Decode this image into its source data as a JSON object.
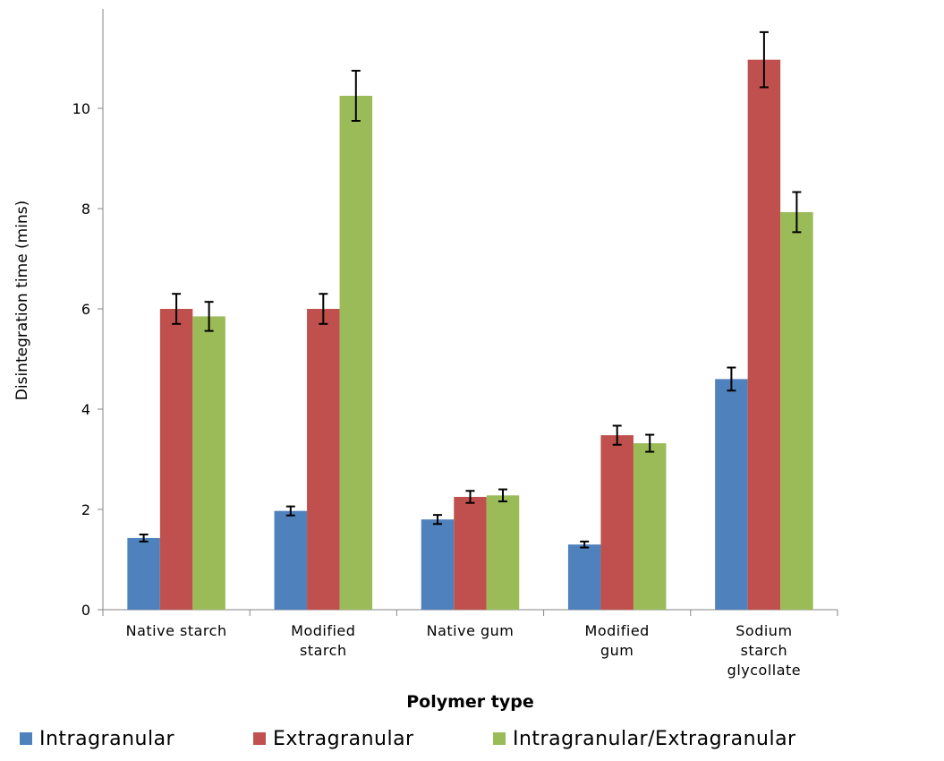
{
  "chart_data": {
    "type": "bar",
    "title": "",
    "xlabel": "Polymer type",
    "ylabel": "Disintegration time (mins)",
    "ylim": [
      0,
      12
    ],
    "yticks": [
      0,
      2,
      4,
      6,
      8,
      10
    ],
    "grid": false,
    "legend_position": "bottom",
    "categories": [
      [
        "Native starch"
      ],
      [
        "Modified",
        "starch"
      ],
      [
        "Native gum"
      ],
      [
        "Modified",
        "gum"
      ],
      [
        "Sodium",
        "starch",
        "glycollate"
      ]
    ],
    "series": [
      {
        "name": "Intragranular",
        "color": "#4F81BD",
        "values": [
          1.43,
          1.97,
          1.8,
          1.3,
          4.6
        ],
        "errors": [
          0.07,
          0.09,
          0.09,
          0.06,
          0.23
        ]
      },
      {
        "name": "Extragranular",
        "color": "#C0504D",
        "values": [
          6.0,
          6.0,
          2.25,
          3.48,
          10.97
        ],
        "errors": [
          0.3,
          0.3,
          0.12,
          0.19,
          0.55
        ]
      },
      {
        "name": "Intragranular/Extragranular",
        "color": "#9BBB59",
        "values": [
          5.85,
          10.25,
          2.28,
          3.32,
          7.93
        ],
        "errors": [
          0.29,
          0.5,
          0.12,
          0.17,
          0.4
        ]
      }
    ]
  }
}
